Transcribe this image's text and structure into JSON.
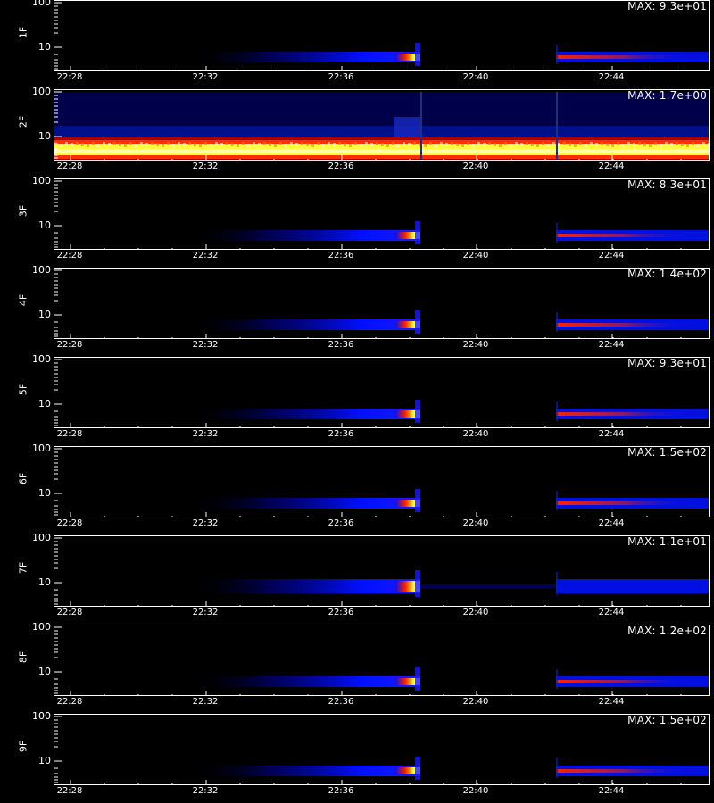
{
  "chart_data": {
    "type": "heatmap",
    "x_tick_labels": [
      "22:28",
      "22:32",
      "22:36",
      "22:40",
      "22:44"
    ],
    "y_tick_labels": [
      "100",
      "10"
    ],
    "yscale": "log",
    "panels": [
      {
        "channel": "1F",
        "max_label": "MAX: 9.3e+01"
      },
      {
        "channel": "2F",
        "max_label": "MAX: 1.7e+00"
      },
      {
        "channel": "3F",
        "max_label": "MAX: 8.3e+01"
      },
      {
        "channel": "4F",
        "max_label": "MAX: 1.4e+02"
      },
      {
        "channel": "5F",
        "max_label": "MAX: 9.3e+01"
      },
      {
        "channel": "6F",
        "max_label": "MAX: 1.5e+02"
      },
      {
        "channel": "7F",
        "max_label": "MAX: 1.1e+01"
      },
      {
        "channel": "8F",
        "max_label": "MAX: 1.2e+02"
      },
      {
        "channel": "9F",
        "max_label": "MAX: 1.5e+02"
      }
    ],
    "colormap": [
      "#000000",
      "#1010ff",
      "#ff2000",
      "#ffff30",
      "#ffffff"
    ]
  }
}
